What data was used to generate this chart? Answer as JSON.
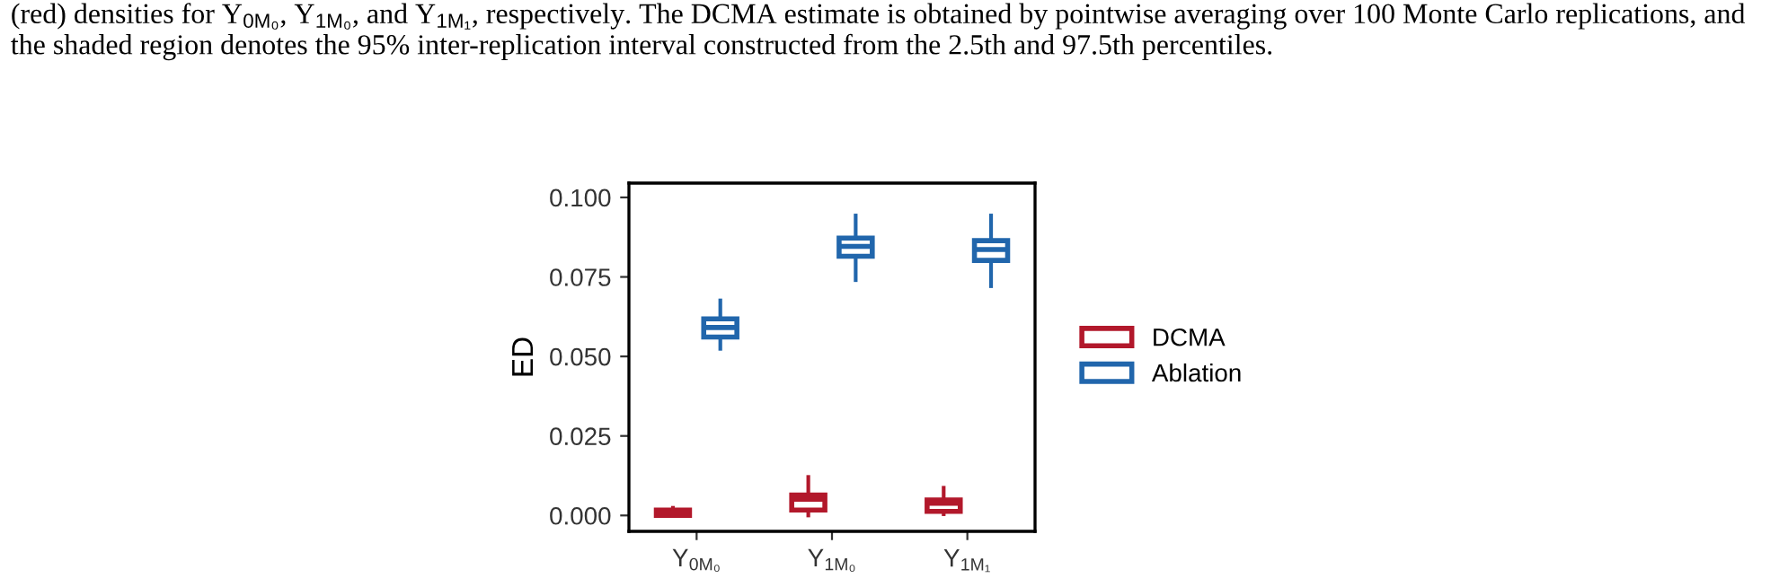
{
  "chart_data": {
    "type": "box",
    "ylabel": "ED",
    "categories": [
      "Y$_{0M₀}$",
      "Y$_{1M₀}$",
      "Y$_{1M₁}$"
    ],
    "annotations": [
      "(red) densities for Y$_{0M₀}$, Y$_{1M₀}$, and Y$_{1M₁}$, respectively. The DCMA estimate is obtained by pointwise averaging over 100 Monte Carlo replications, and the shaded region denotes the 95% inter-replication interval constructed from the 2.5th and 97.5th percentiles."
    ],
    "series": [
      {
        "name": "DCMA",
        "color": "#b2182b",
        "boxes": [
          {
            "low": 0.0,
            "q1": 0.0,
            "median": 0.0009,
            "q3": 0.0017,
            "high": 0.0024
          },
          {
            "low": 0.0,
            "q1": 0.0017,
            "median": 0.0051,
            "q3": 0.0064,
            "high": 0.0121
          },
          {
            "low": 0.0004,
            "q1": 0.0013,
            "median": 0.0038,
            "q3": 0.0049,
            "high": 0.0087
          }
        ]
      },
      {
        "name": "Ablation",
        "color": "#2166ac",
        "boxes": [
          {
            "low": 0.0524,
            "q1": 0.0561,
            "median": 0.0591,
            "q3": 0.0618,
            "high": 0.0676
          },
          {
            "low": 0.074,
            "q1": 0.0815,
            "median": 0.0846,
            "q3": 0.0872,
            "high": 0.0943
          },
          {
            "low": 0.0721,
            "q1": 0.0802,
            "median": 0.0836,
            "q3": 0.0864,
            "high": 0.0943
          }
        ]
      }
    ],
    "ylim": [
      -0.005,
      0.1045
    ],
    "yticks": [
      {
        "value": 0,
        "label": "0.000"
      },
      {
        "value": 0.025,
        "label": "0.025"
      },
      {
        "value": 0.05,
        "label": "0.050"
      },
      {
        "value": 0.075,
        "label": "0.075"
      },
      {
        "value": 0.1,
        "label": "0.100"
      }
    ],
    "grid": false,
    "legend": "right"
  }
}
